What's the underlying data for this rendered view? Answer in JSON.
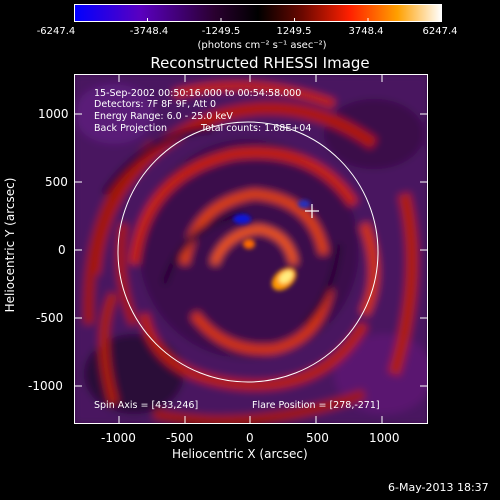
{
  "colorbar": {
    "ticks": [
      "-6247.4",
      "-3748.4",
      "-1249.5",
      "1249.5",
      "3748.4",
      "6247.4"
    ],
    "units": "(photons cm⁻² s⁻¹ asec⁻²)",
    "colors": [
      "#0000ff",
      "#6a00b0",
      "#220022",
      "#000000",
      "#7a0a00",
      "#ff2a00",
      "#ffb000",
      "#ffffff"
    ]
  },
  "title": "Reconstructed RHESSI Image",
  "info": {
    "time": "15-Sep-2002 00:50:16.000 to 00:54:58.000",
    "detectors": "Detectors: 7F 8F 9F, Att 0",
    "energy": "Energy Range: 6.0 - 25.0 keV",
    "method": "Back Projection",
    "counts": "Total counts: 1.68E+04"
  },
  "annotations": {
    "spin_axis": "Spin Axis = [433,246]",
    "flare_position": "Flare Position = [278,-271]"
  },
  "axes": {
    "xlabel": "Heliocentric X (arcsec)",
    "ylabel": "Heliocentric Y (arcsec)",
    "xticks": [
      "-1000",
      "-500",
      "0",
      "500",
      "1000"
    ],
    "yticks": [
      "1000",
      "500",
      "0",
      "-500",
      "-1000"
    ]
  },
  "footer_date": "6-May-2013 18:37"
}
